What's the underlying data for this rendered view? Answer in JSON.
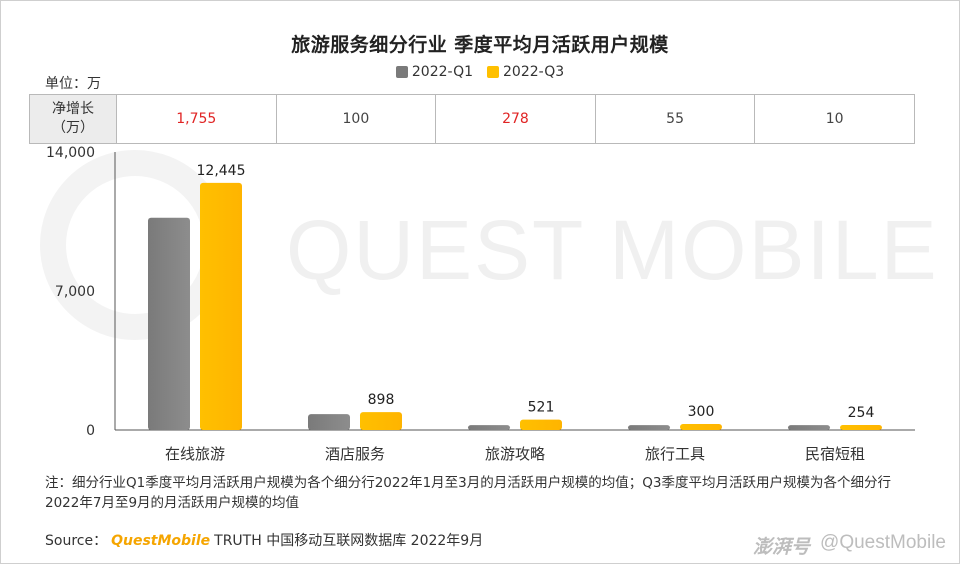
{
  "chart_data": {
    "type": "bar",
    "title": "旅游服务细分行业 季度平均月活跃用户规模",
    "unit_label": "单位：万",
    "categories": [
      "在线旅游",
      "酒店服务",
      "旅游攻略",
      "旅行工具",
      "民宿短租"
    ],
    "series": [
      {
        "name": "2022-Q1",
        "color": "#7a7a7a",
        "values": [
          10690,
          798,
          243,
          245,
          244
        ]
      },
      {
        "name": "2022-Q3",
        "color": "#ffc000",
        "values": [
          12445,
          898,
          521,
          300,
          254
        ]
      }
    ],
    "data_labels_series": "2022-Q3",
    "ylim": [
      0,
      14000
    ],
    "yticks": [
      "0",
      "7,000",
      "14,000"
    ],
    "ytick_values": [
      0,
      7000,
      14000
    ],
    "xlabel": "",
    "ylabel": "",
    "legend_position": "top-center",
    "grid": false
  },
  "net_growth": {
    "header": [
      "净增长",
      "（万）"
    ],
    "values": [
      "1,755",
      "100",
      "278",
      "55",
      "10"
    ],
    "highlight_color": "#e02424",
    "highlighted": [
      true,
      false,
      true,
      false,
      false
    ]
  },
  "watermark": "QUEST MOBILE",
  "note": "注：细分行业Q1季度平均月活跃用户规模为各个细分行2022年1月至3月的月活跃用户规模的均值；Q3季度平均月活跃用户规模为各个细分行2022年7月至9月的月活跃用户规模的均值",
  "source": {
    "label": "Source：",
    "brand": "QuestMobile",
    "text": "TRUTH 中国移动互联网数据库 2022年9月"
  },
  "footer_watermark": {
    "left": "澎湃号",
    "right": "@QuestMobile"
  }
}
